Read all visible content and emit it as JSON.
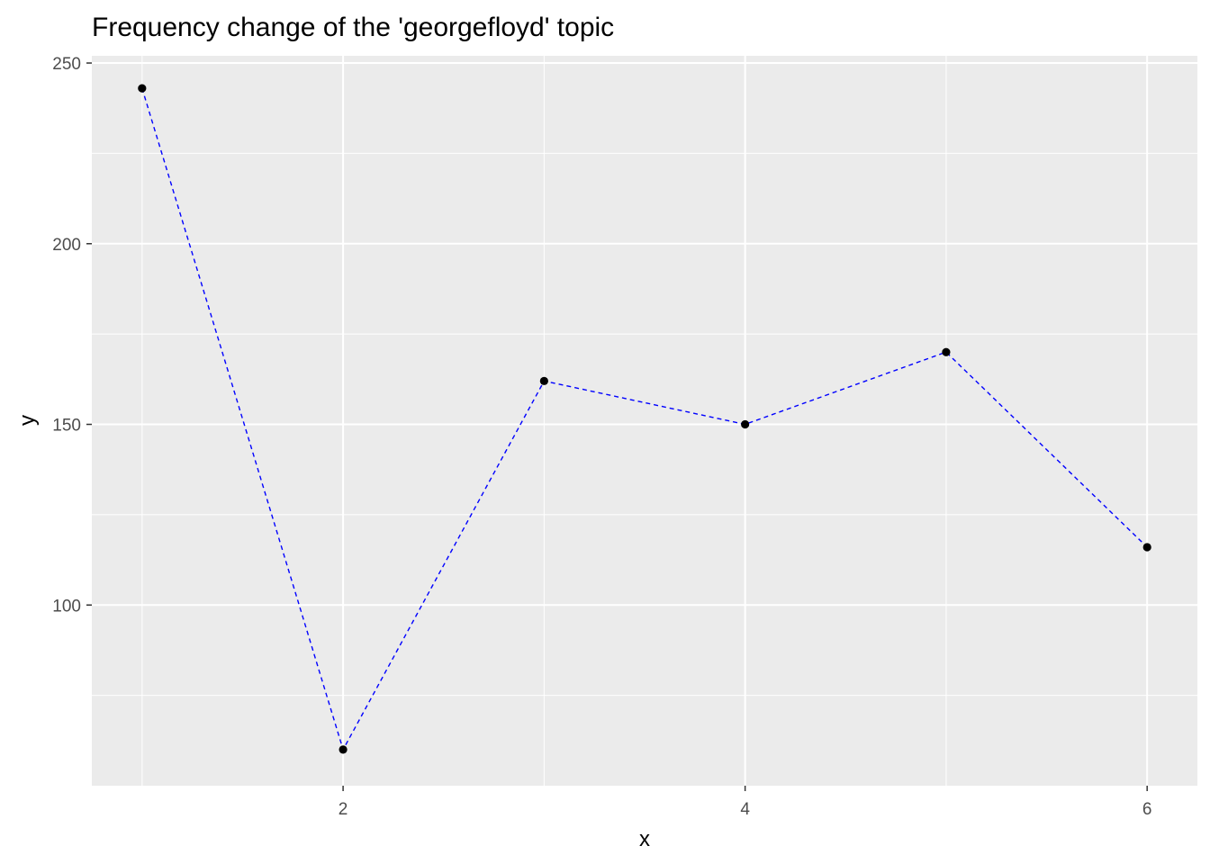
{
  "chart_data": {
    "type": "line",
    "title": "Frequency change of the 'georgefloyd' topic",
    "xlabel": "x",
    "ylabel": "y",
    "x": [
      1,
      2,
      3,
      4,
      5,
      6
    ],
    "series": [
      {
        "values": [
          243,
          60,
          162,
          150,
          170,
          116
        ]
      }
    ],
    "xlim": [
      0.75,
      6.25
    ],
    "ylim": [
      50,
      252
    ],
    "x_ticks": [
      2,
      4,
      6
    ],
    "y_ticks": [
      100,
      150,
      200,
      250
    ],
    "x_tick_labels": [
      "2",
      "4",
      "6"
    ],
    "y_tick_labels": [
      "100",
      "150",
      "200",
      "250"
    ],
    "line_style": "dashed",
    "colors": {
      "line": "#0000ff",
      "point": "#000000",
      "panel_background": "#ebebeb",
      "grid": "#ffffff",
      "tick_label": "#4d4d4d"
    },
    "grid": true,
    "legend": "none"
  }
}
